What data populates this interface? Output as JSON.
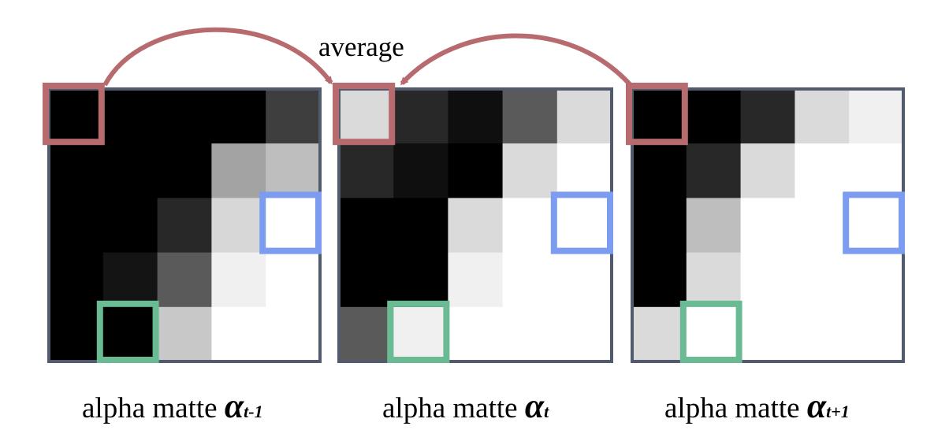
{
  "average_label": "average",
  "colors": {
    "red": "#b86b6f",
    "blue": "#7b9cf0",
    "green": "#6aba93",
    "frame": "#525a6e"
  },
  "matrices": [
    {
      "caption": "alpha matte",
      "symbol": "α",
      "subscript": "t-1",
      "grid": [
        [
          0,
          0,
          0,
          0,
          62
        ],
        [
          0,
          0,
          0,
          163,
          190
        ],
        [
          0,
          0,
          40,
          215,
          255
        ],
        [
          0,
          20,
          90,
          240,
          255
        ],
        [
          0,
          0,
          200,
          255,
          255
        ]
      ]
    },
    {
      "caption": "alpha matte",
      "symbol": "α",
      "subscript": "t",
      "grid": [
        [
          218,
          40,
          15,
          90,
          218
        ],
        [
          40,
          15,
          0,
          218,
          255
        ],
        [
          0,
          0,
          218,
          255,
          255
        ],
        [
          0,
          0,
          240,
          255,
          255
        ],
        [
          90,
          240,
          255,
          255,
          255
        ]
      ]
    },
    {
      "caption": "alpha matte",
      "symbol": "α",
      "subscript": "t+1",
      "grid": [
        [
          0,
          0,
          40,
          218,
          240
        ],
        [
          0,
          40,
          218,
          255,
          255
        ],
        [
          0,
          190,
          255,
          255,
          255
        ],
        [
          0,
          218,
          255,
          255,
          255
        ],
        [
          218,
          255,
          255,
          255,
          255
        ]
      ]
    }
  ]
}
